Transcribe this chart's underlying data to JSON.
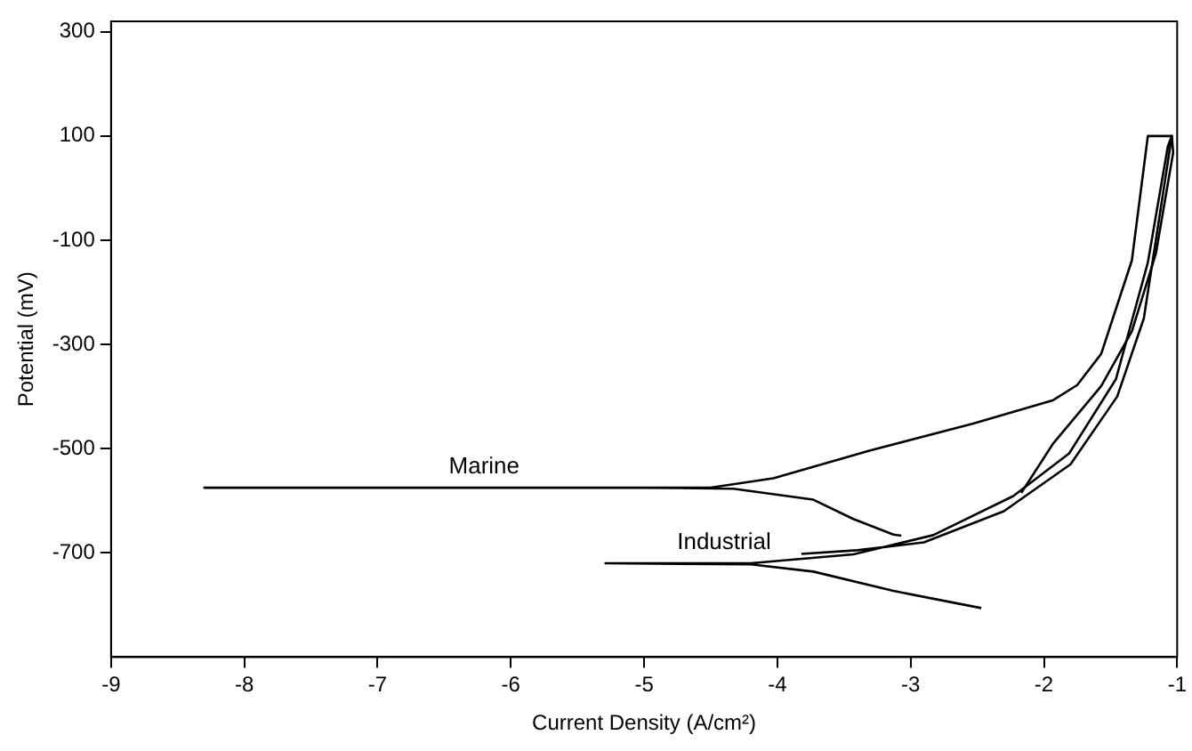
{
  "chart_data": {
    "type": "line",
    "xlabel": "Current Density (A/cm²)",
    "ylabel": "Potential (mV)",
    "xlim": [
      -9,
      -1
    ],
    "xticks": [
      -9,
      -8,
      -7,
      -6,
      -5,
      -4,
      -3,
      -2,
      -1
    ],
    "ylim": [
      -900,
      320
    ],
    "yticks": [
      300,
      100,
      -100,
      -300,
      -500,
      -700
    ],
    "grid": false,
    "legend": false,
    "marker": "none",
    "line_style": "solid",
    "series": [
      {
        "name": "Marine",
        "color": "#000000",
        "x": [
          -3.07,
          -3.13,
          -3.43,
          -3.73,
          -4.33,
          -5,
          -8.3,
          -6.2,
          -4.5,
          -4.03,
          -3.31,
          -2.53,
          -1.93,
          -1.75,
          -1.57,
          -1.34,
          -1.22,
          -1.04,
          -1.03,
          -1.16,
          -1.34,
          -1.57,
          -1.93,
          -2.17
        ],
        "values": [
          -667,
          -665,
          -635,
          -598,
          -577,
          -575,
          -575,
          -575,
          -575,
          -557,
          -504,
          -452,
          -407,
          -378,
          -318,
          -139,
          100,
          100,
          68,
          -126,
          -275,
          -380,
          -490,
          -585
        ]
      },
      {
        "name": "Industrial",
        "color": "#000000",
        "x": [
          -2.47,
          -3.13,
          -3.73,
          -4.2,
          -5.29,
          -4.4,
          -4.2,
          -3.43,
          -2.83,
          -2.23,
          -1.81,
          -1.46,
          -1.22,
          -1.07,
          -1.04,
          -1.1,
          -1.25,
          -1.45,
          -1.8,
          -2.3,
          -2.9,
          -3.4,
          -3.82
        ],
        "values": [
          -806,
          -773,
          -736,
          -722,
          -720,
          -720,
          -720,
          -703,
          -666,
          -591,
          -509,
          -367,
          -143,
          80,
          100,
          0,
          -250,
          -400,
          -530,
          -620,
          -680,
          -695,
          -702
        ]
      }
    ]
  }
}
